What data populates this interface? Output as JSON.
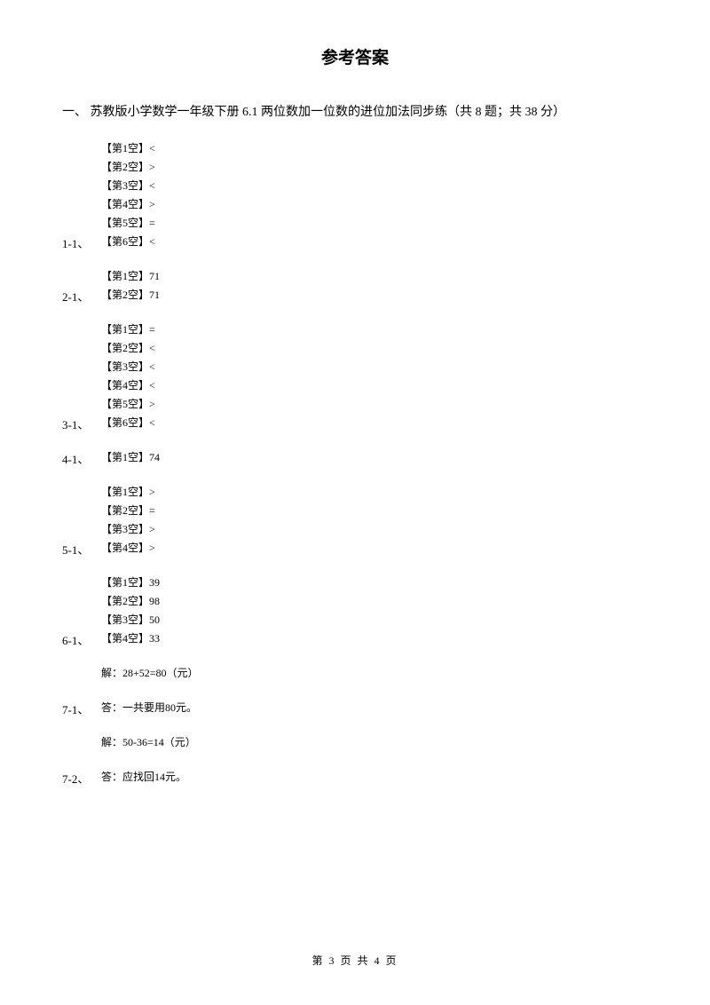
{
  "title": "参考答案",
  "section_header": "一、 苏教版小学数学一年级下册 6.1 两位数加一位数的进位加法同步练（共 8 题；共 38 分）",
  "questions": {
    "q1": {
      "num": "1-1、",
      "items": [
        "【第1空】<",
        "【第2空】>",
        "【第3空】<",
        "【第4空】>",
        "【第5空】=",
        "【第6空】<"
      ]
    },
    "q2": {
      "num": "2-1、",
      "items": [
        "【第1空】71",
        "【第2空】71"
      ]
    },
    "q3": {
      "num": "3-1、",
      "items": [
        "【第1空】=",
        "【第2空】<",
        "【第3空】<",
        "【第4空】<",
        "【第5空】>",
        "【第6空】<"
      ]
    },
    "q4": {
      "num": "4-1、",
      "items": [
        "【第1空】74"
      ]
    },
    "q5": {
      "num": "5-1、",
      "items": [
        "【第1空】>",
        "【第2空】=",
        "【第3空】>",
        "【第4空】>"
      ]
    },
    "q6": {
      "num": "6-1、",
      "items": [
        "【第1空】39",
        "【第2空】98",
        "【第3空】50",
        "【第4空】33"
      ]
    },
    "q7_1": {
      "num": "7-1、",
      "solution": "解：28+52=80（元）",
      "answer": "答：一共要用80元。"
    },
    "q7_2": {
      "num": "7-2、",
      "solution": "解：50-36=14（元）",
      "answer": "答：应找回14元。"
    }
  },
  "footer": "第 3 页 共 4 页"
}
